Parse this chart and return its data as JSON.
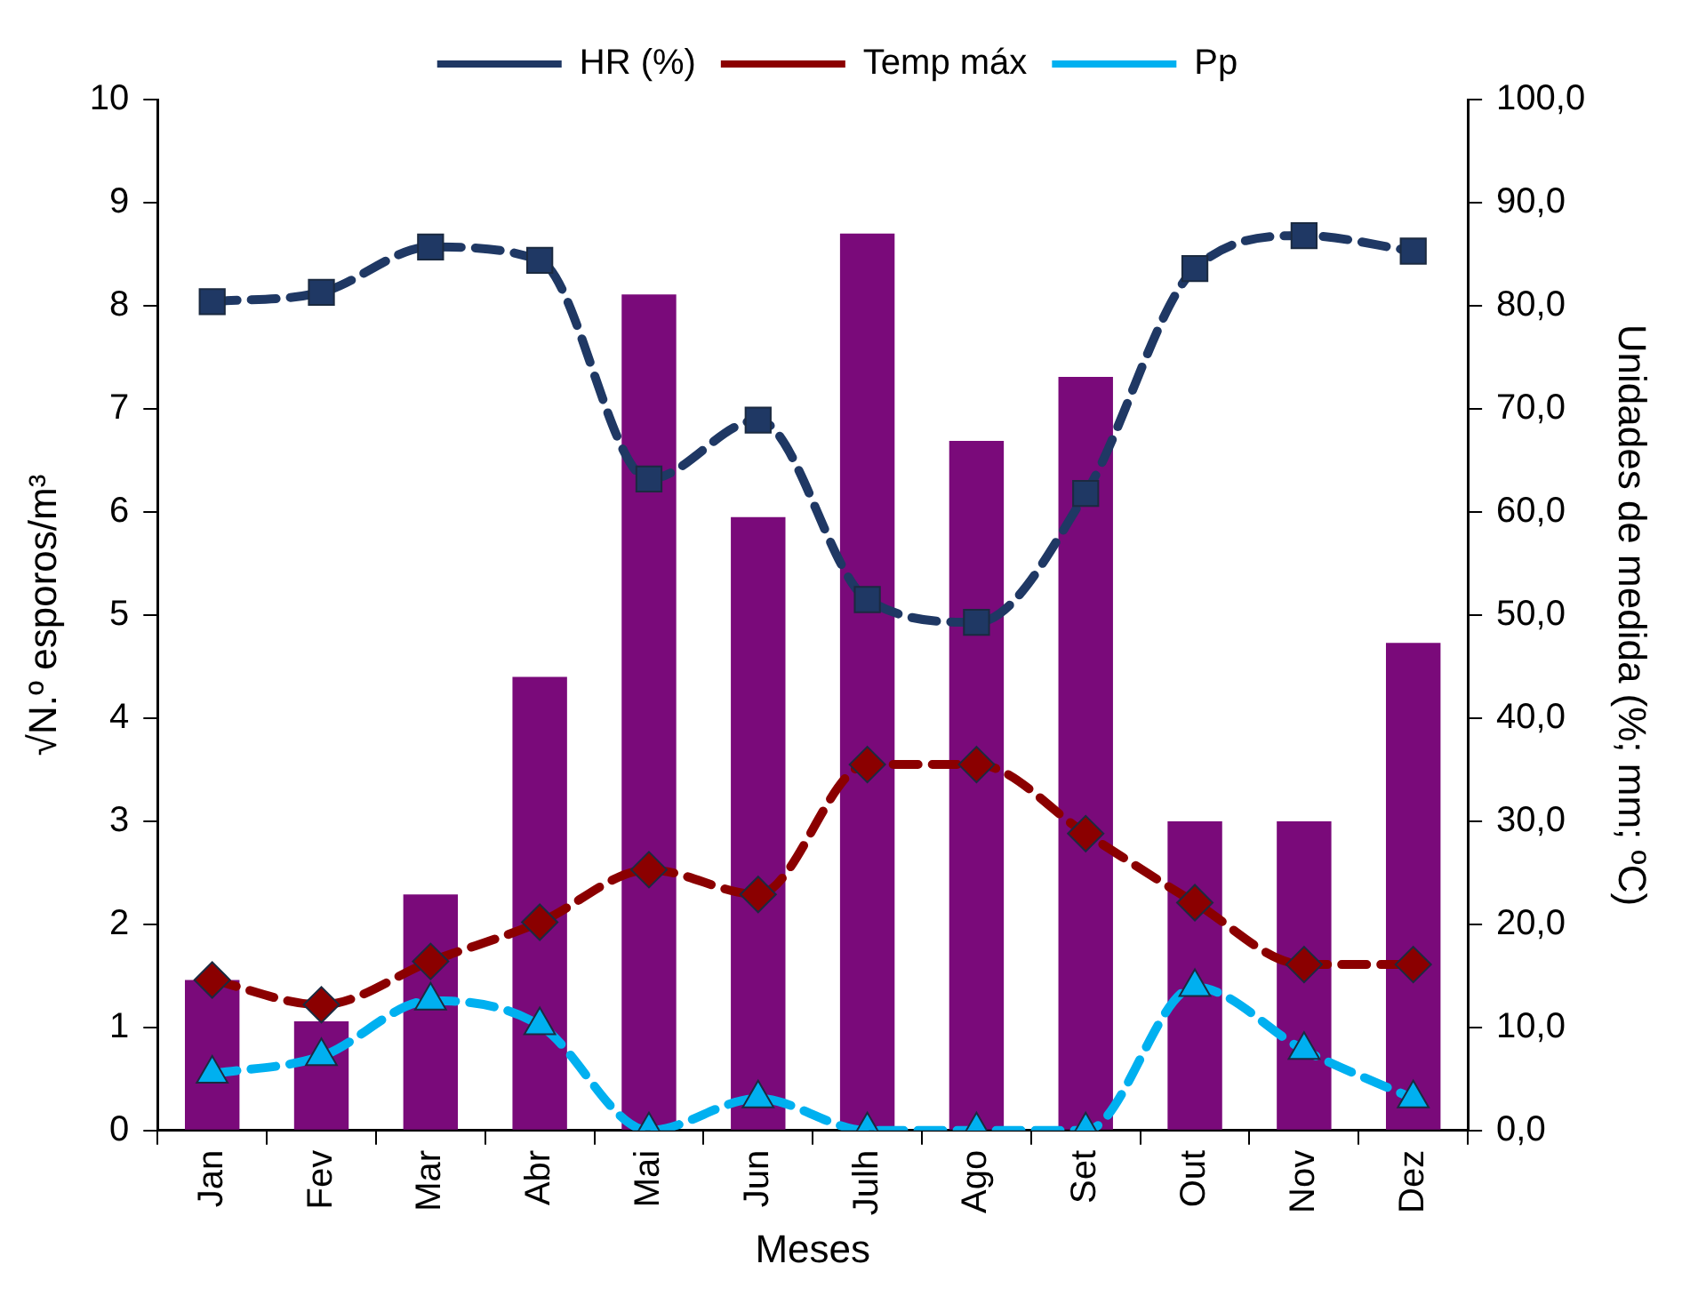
{
  "chart_data": {
    "type": "bar",
    "xlabel": "Meses",
    "ylabel": "√N.º esporos/m³",
    "y2label": "Unidades de medida (%; mm; ºC)",
    "categories": [
      "Jan",
      "Fev",
      "Mar",
      "Abr",
      "Mai",
      "Jun",
      "Julh",
      "Ago",
      "Set",
      "Out",
      "Nov",
      "Dez"
    ],
    "series": [
      {
        "color": "#7a0a7a",
        "values": [
          1.46,
          1.06,
          2.29,
          4.4,
          8.11,
          5.95,
          8.7,
          6.69,
          7.31,
          3.0,
          3.0,
          4.73
        ]
      },
      {
        "type": "line",
        "name": "HR (%)",
        "color": "#1f3864",
        "axis": "y2",
        "marker": "square",
        "line_style": "dashed",
        "values": [
          80.4,
          81.3,
          85.7,
          84.4,
          63.2,
          68.9,
          51.5,
          49.3,
          61.8,
          83.6,
          86.8,
          85.3
        ]
      },
      {
        "type": "line",
        "name": "Temp máx",
        "color": "#8b0000",
        "axis": "y2",
        "marker": "diamond",
        "line_style": "dashed",
        "values": [
          14.6,
          12.2,
          16.4,
          20.2,
          25.3,
          22.9,
          35.5,
          35.5,
          28.8,
          22.1,
          16.1,
          16.1
        ]
      },
      {
        "type": "line",
        "name": "Pp",
        "color": "#00b0f0",
        "axis": "y2",
        "marker": "triangle",
        "line_style": "dashed",
        "values": [
          5.5,
          7.2,
          12.6,
          10.2,
          0,
          3.1,
          0,
          0,
          0,
          13.9,
          7.8,
          3.1
        ]
      }
    ],
    "ylim": [
      0,
      10
    ],
    "yticks": [
      0,
      1,
      2,
      3,
      4,
      5,
      6,
      7,
      8,
      9,
      10
    ],
    "y2lim": [
      0,
      100
    ],
    "y2ticks": [
      {
        "value": 0,
        "label": "0,0"
      },
      {
        "value": 10,
        "label": "10,0"
      },
      {
        "value": 20,
        "label": "20,0"
      },
      {
        "value": 30,
        "label": "30,0"
      },
      {
        "value": 40,
        "label": "40,0"
      },
      {
        "value": 50,
        "label": "50,0"
      },
      {
        "value": 60,
        "label": "60,0"
      },
      {
        "value": 70,
        "label": "70,0"
      },
      {
        "value": 80,
        "label": "80,0"
      },
      {
        "value": 90,
        "label": "90,0"
      },
      {
        "value": 100,
        "label": "100,0"
      }
    ],
    "grid": false,
    "legend": "top"
  }
}
